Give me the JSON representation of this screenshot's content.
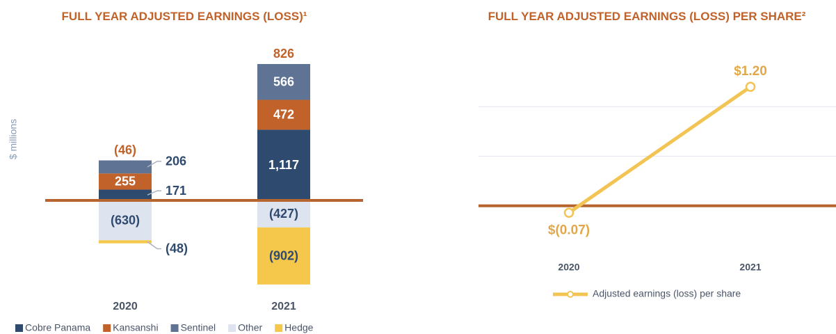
{
  "chart_data": [
    {
      "type": "stacked-bar",
      "title": "FULL YEAR ADJUSTED EARNINGS (LOSS)¹",
      "y_label": "$ millions",
      "categories": [
        "2020",
        "2021"
      ],
      "series": [
        {
          "name": "Cobre Panama",
          "color": "#2e4a6e",
          "values": [
            171,
            1117
          ],
          "value_labels": [
            "171",
            "1,117"
          ]
        },
        {
          "name": "Kansanshi",
          "color": "#c0622a",
          "values": [
            255,
            472
          ],
          "value_labels": [
            "255",
            "472"
          ]
        },
        {
          "name": "Sentinel",
          "color": "#5f7494",
          "values": [
            206,
            566
          ],
          "value_labels": [
            "206",
            "566"
          ]
        },
        {
          "name": "Other",
          "color": "#dde3ef",
          "values": [
            -630,
            -427
          ],
          "value_labels": [
            "(630)",
            "(427)"
          ]
        },
        {
          "name": "Hedge",
          "color": "#f5c84c",
          "values": [
            -48,
            -902
          ],
          "value_labels": [
            "(48)",
            "(902)"
          ]
        }
      ],
      "totals": [
        -46,
        826
      ],
      "total_labels": [
        "(46)",
        "826"
      ],
      "ylim": [
        -1400,
        2300
      ]
    },
    {
      "type": "line",
      "title": "FULL YEAR ADJUSTED EARNINGS (LOSS) PER SHARE²",
      "categories": [
        "2020",
        "2021"
      ],
      "series": [
        {
          "name": "Adjusted earnings (loss) per share",
          "color": "#f2c453",
          "values": [
            -0.07,
            1.2
          ],
          "value_labels": [
            "$(0.07)",
            "$1.20"
          ]
        }
      ],
      "ylim": [
        -0.5,
        1.5
      ],
      "yticks": [
        0,
        0.5,
        1
      ],
      "grid": true
    }
  ]
}
